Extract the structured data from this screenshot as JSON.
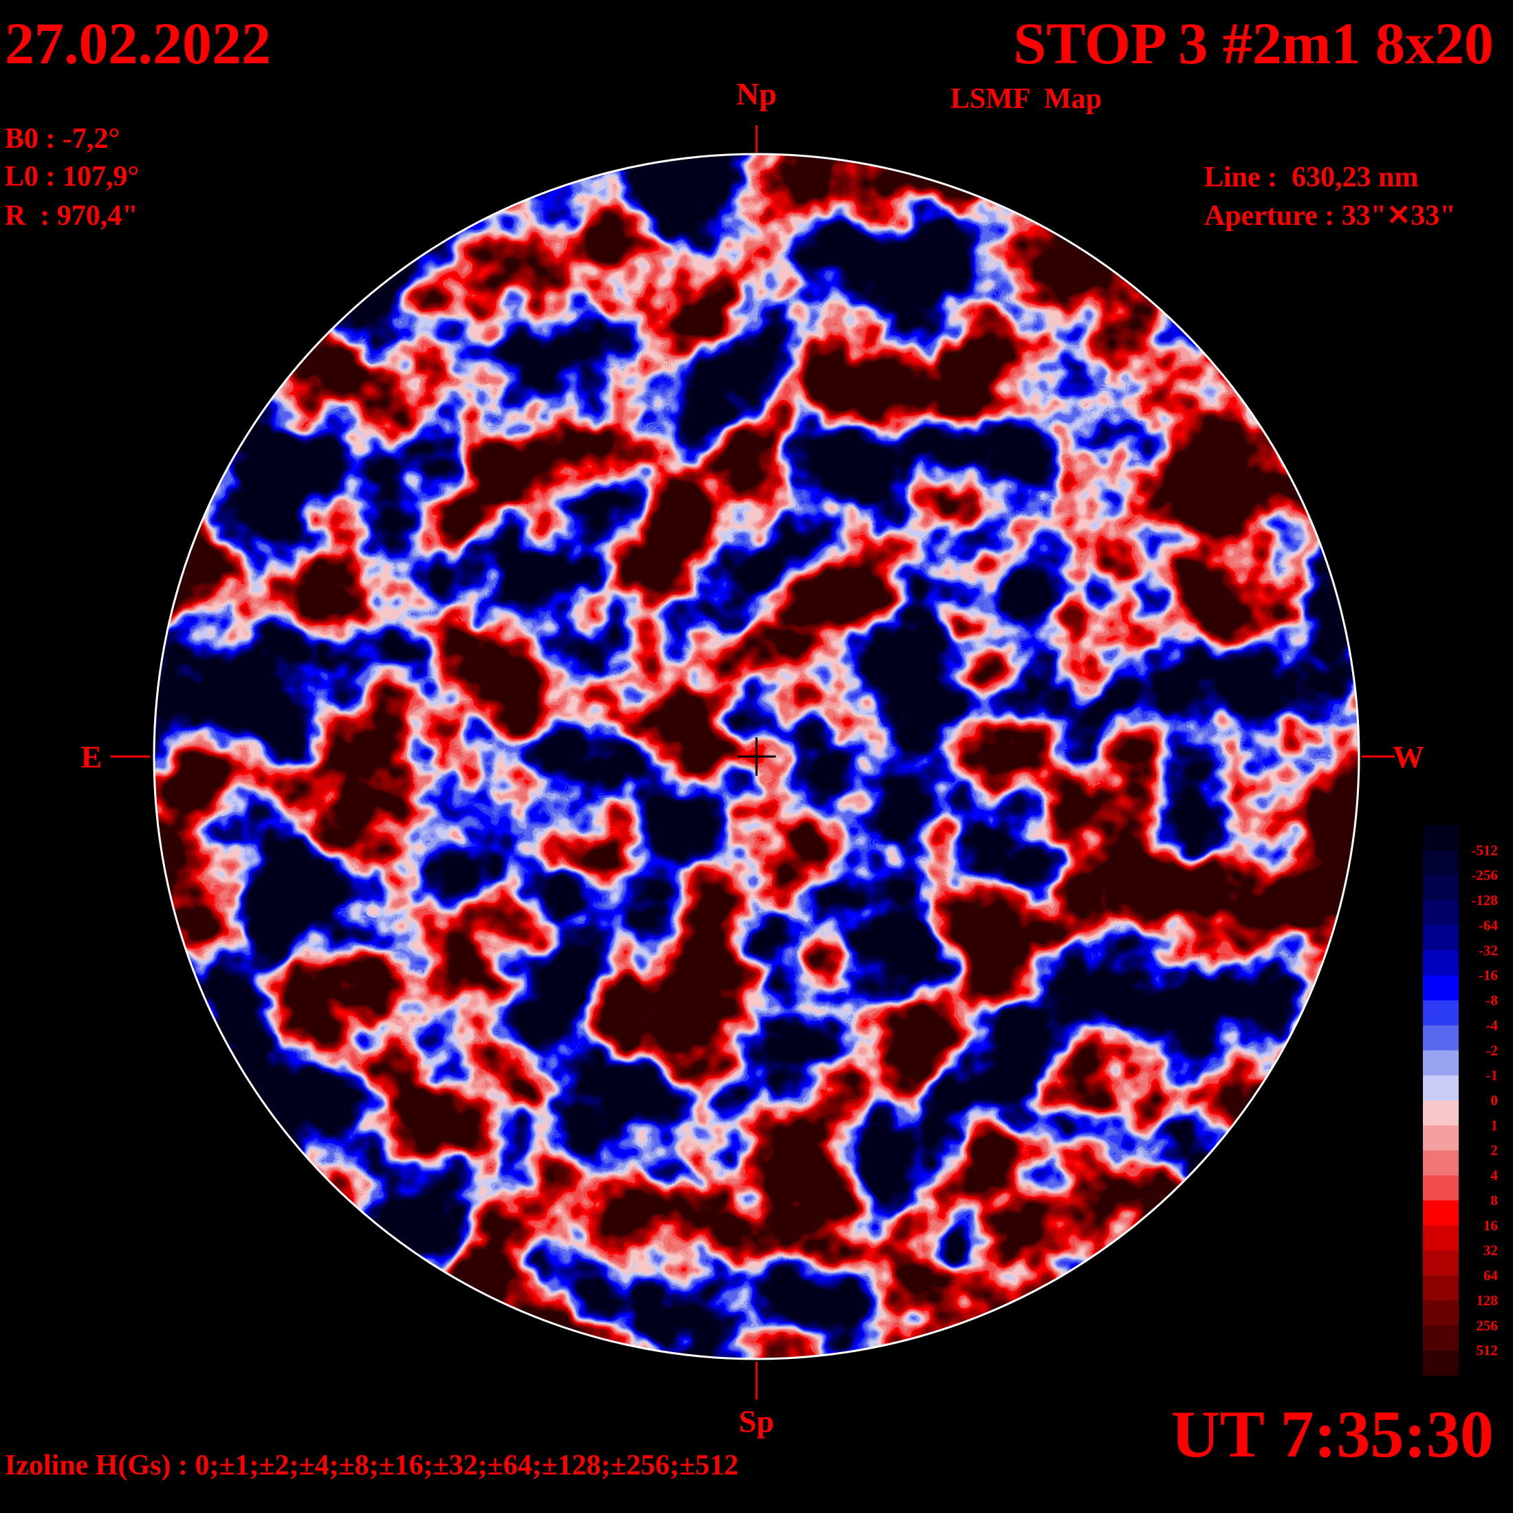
{
  "header": {
    "date": "27.02.2022",
    "title": "STOP 3 #2m1 8x20",
    "subtitle": "LSMF  Map"
  },
  "parameters": {
    "b0": "B0 : -7,2°",
    "l0": "L0 : 107,9°",
    "r": "R  : 970,4\"",
    "line": "Line :  630,23 nm",
    "aperture": "Aperture : 33\"✕33\""
  },
  "directions": {
    "north": "Np",
    "south": "Sp",
    "east": "E",
    "west": "W"
  },
  "time": "UT 7:35:30",
  "izoline": "Izoline H(Gs) : 0;±1;±2;±4;±8;±16;±32;±64;±128;±256;±512",
  "colorbar": {
    "levels": [
      -512,
      -256,
      -128,
      -64,
      -32,
      -16,
      -8,
      -4,
      -2,
      -1,
      0,
      1,
      2,
      4,
      8,
      16,
      32,
      64,
      128,
      256,
      512
    ],
    "colors": [
      "#00001e",
      "#000032",
      "#00004c",
      "#000068",
      "#000090",
      "#0000c0",
      "#0000ff",
      "#2c3cf4",
      "#5868ee",
      "#9aa2f2",
      "#c8ccf6",
      "#f8c8c8",
      "#f4a0a0",
      "#f07676",
      "#f24c4c",
      "#ff0000",
      "#d40000",
      "#b00000",
      "#8c0000",
      "#6a0000",
      "#4e0000",
      "#300000"
    ]
  }
}
